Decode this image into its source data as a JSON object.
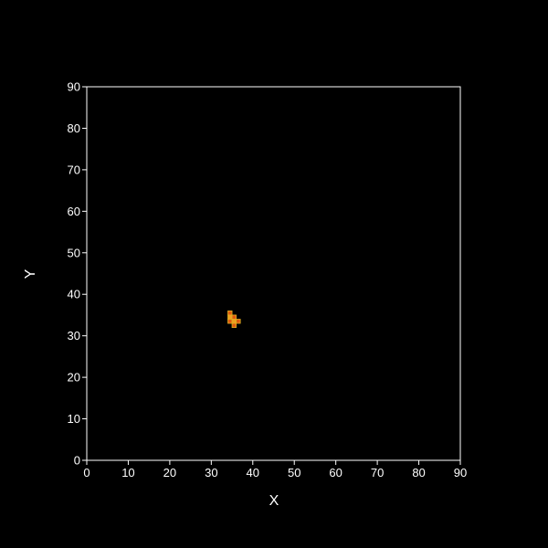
{
  "chart_data": {
    "type": "heatmap",
    "title": "",
    "xlabel": "X",
    "ylabel": "Y",
    "xlim": [
      0,
      90
    ],
    "ylim": [
      0,
      90
    ],
    "x_ticks": [
      0,
      10,
      20,
      30,
      40,
      50,
      60,
      70,
      80,
      90
    ],
    "y_ticks": [
      0,
      10,
      20,
      30,
      40,
      50,
      60,
      70,
      80,
      90
    ],
    "grid": false,
    "background_color": "#000000",
    "axis_color": "#ffffff",
    "cell_size": 1,
    "cells": [
      {
        "x": 34,
        "y": 35,
        "value": 0.6
      },
      {
        "x": 34,
        "y": 34,
        "value": 1.0
      },
      {
        "x": 34,
        "y": 33,
        "value": 0.7
      },
      {
        "x": 35,
        "y": 34,
        "value": 0.5
      },
      {
        "x": 35,
        "y": 33,
        "value": 1.0
      },
      {
        "x": 35,
        "y": 32,
        "value": 0.6
      },
      {
        "x": 36,
        "y": 33,
        "value": 0.7
      }
    ],
    "colormap": [
      "#7a1a00",
      "#c02010",
      "#e05a10",
      "#f0a020"
    ],
    "cell_border_color": "#e0b020"
  }
}
